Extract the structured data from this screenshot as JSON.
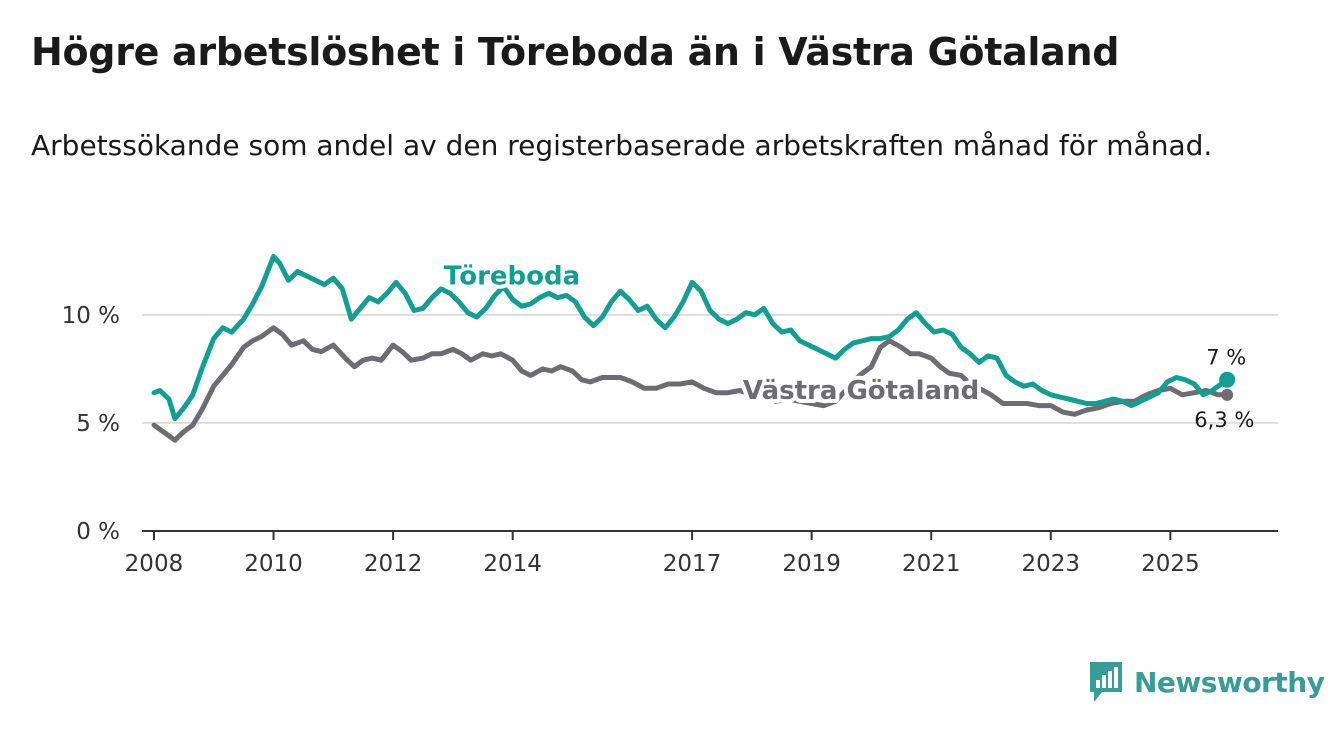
{
  "title": "Högre arbetslöshet i Töreboda än i Västra Götaland",
  "subtitle": "Arbetssökande som andel av den registerbaserade arbetskraften månad för månad.",
  "brand": {
    "name": "Newsworthy",
    "color": "#3a9c96"
  },
  "chart_data": {
    "type": "line",
    "title": "Högre arbetslöshet i Töreboda än i Västra Götaland",
    "xlabel": "",
    "ylabel": "",
    "ylim": [
      0,
      13
    ],
    "xlim": [
      2007.8,
      2026.8
    ],
    "grid": true,
    "y_ticks": [
      {
        "value": 0,
        "label": "0 %"
      },
      {
        "value": 5,
        "label": "5 %"
      },
      {
        "value": 10,
        "label": "10 %"
      }
    ],
    "x_ticks": [
      {
        "value": 2008,
        "label": "2008"
      },
      {
        "value": 2010,
        "label": "2010"
      },
      {
        "value": 2012,
        "label": "2012"
      },
      {
        "value": 2014,
        "label": "2014"
      },
      {
        "value": 2017,
        "label": "2017"
      },
      {
        "value": 2019,
        "label": "2019"
      },
      {
        "value": 2021,
        "label": "2021"
      },
      {
        "value": 2023,
        "label": "2023"
      },
      {
        "value": 2025,
        "label": "2025"
      }
    ],
    "series": [
      {
        "name": "Västra Götaland",
        "color": "#6d6c72",
        "end_label": "6,3 %",
        "x": [
          2008.0,
          2008.2,
          2008.35,
          2008.5,
          2008.65,
          2008.8,
          2009.0,
          2009.15,
          2009.3,
          2009.5,
          2009.65,
          2009.8,
          2010.0,
          2010.15,
          2010.3,
          2010.5,
          2010.65,
          2010.8,
          2011.0,
          2011.2,
          2011.35,
          2011.5,
          2011.65,
          2011.8,
          2012.0,
          2012.15,
          2012.3,
          2012.5,
          2012.65,
          2012.8,
          2013.0,
          2013.15,
          2013.3,
          2013.5,
          2013.65,
          2013.8,
          2014.0,
          2014.15,
          2014.3,
          2014.5,
          2014.65,
          2014.8,
          2015.0,
          2015.15,
          2015.3,
          2015.5,
          2015.65,
          2015.8,
          2016.0,
          2016.2,
          2016.4,
          2016.6,
          2016.8,
          2017.0,
          2017.2,
          2017.4,
          2017.6,
          2017.8,
          2018.0,
          2018.2,
          2018.4,
          2018.6,
          2018.8,
          2019.0,
          2019.2,
          2019.4,
          2019.6,
          2019.8,
          2020.0,
          2020.15,
          2020.3,
          2020.5,
          2020.65,
          2020.8,
          2021.0,
          2021.15,
          2021.3,
          2021.5,
          2021.65,
          2021.8,
          2022.0,
          2022.2,
          2022.4,
          2022.6,
          2022.8,
          2023.0,
          2023.2,
          2023.4,
          2023.6,
          2023.8,
          2024.0,
          2024.2,
          2024.4,
          2024.6,
          2024.8,
          2025.0,
          2025.2,
          2025.4,
          2025.6,
          2025.8,
          2025.95
        ],
        "values": [
          4.9,
          4.5,
          4.2,
          4.6,
          4.9,
          5.6,
          6.7,
          7.2,
          7.7,
          8.5,
          8.8,
          9.0,
          9.4,
          9.1,
          8.6,
          8.8,
          8.4,
          8.3,
          8.6,
          8.0,
          7.6,
          7.9,
          8.0,
          7.9,
          8.6,
          8.3,
          7.9,
          8.0,
          8.2,
          8.2,
          8.4,
          8.2,
          7.9,
          8.2,
          8.1,
          8.2,
          7.9,
          7.4,
          7.2,
          7.5,
          7.4,
          7.6,
          7.4,
          7.0,
          6.9,
          7.1,
          7.1,
          7.1,
          6.9,
          6.6,
          6.6,
          6.8,
          6.8,
          6.9,
          6.6,
          6.4,
          6.4,
          6.5,
          6.3,
          6.2,
          6.0,
          6.1,
          6.0,
          5.9,
          5.8,
          6.0,
          6.6,
          7.2,
          7.6,
          8.5,
          8.8,
          8.5,
          8.2,
          8.2,
          8.0,
          7.6,
          7.3,
          7.2,
          6.8,
          6.6,
          6.3,
          5.9,
          5.9,
          5.9,
          5.8,
          5.8,
          5.5,
          5.4,
          5.6,
          5.7,
          5.9,
          6.0,
          6.0,
          6.3,
          6.5,
          6.6,
          6.3,
          6.4,
          6.5,
          6.3,
          6.3
        ]
      },
      {
        "name": "Töreboda",
        "color": "#129f92",
        "end_label": "7 %",
        "x": [
          2008.0,
          2008.1,
          2008.25,
          2008.35,
          2008.5,
          2008.65,
          2008.8,
          2009.0,
          2009.15,
          2009.3,
          2009.5,
          2009.65,
          2009.8,
          2010.0,
          2010.1,
          2010.25,
          2010.4,
          2010.55,
          2010.7,
          2010.85,
          2011.0,
          2011.15,
          2011.3,
          2011.45,
          2011.6,
          2011.75,
          2011.9,
          2012.05,
          2012.2,
          2012.35,
          2012.5,
          2012.65,
          2012.8,
          2012.95,
          2013.1,
          2013.25,
          2013.4,
          2013.55,
          2013.7,
          2013.85,
          2014.0,
          2014.15,
          2014.3,
          2014.45,
          2014.6,
          2014.75,
          2014.9,
          2015.05,
          2015.2,
          2015.35,
          2015.5,
          2015.65,
          2015.8,
          2015.95,
          2016.1,
          2016.25,
          2016.4,
          2016.55,
          2016.7,
          2016.85,
          2017.0,
          2017.15,
          2017.3,
          2017.45,
          2017.6,
          2017.75,
          2017.9,
          2018.05,
          2018.2,
          2018.35,
          2018.5,
          2018.65,
          2018.8,
          2018.95,
          2019.1,
          2019.25,
          2019.4,
          2019.55,
          2019.7,
          2019.85,
          2020.0,
          2020.15,
          2020.3,
          2020.45,
          2020.6,
          2020.75,
          2020.9,
          2021.05,
          2021.2,
          2021.35,
          2021.5,
          2021.65,
          2021.8,
          2021.95,
          2022.1,
          2022.25,
          2022.4,
          2022.55,
          2022.7,
          2022.85,
          2023.0,
          2023.15,
          2023.3,
          2023.45,
          2023.6,
          2023.75,
          2023.9,
          2024.05,
          2024.2,
          2024.35,
          2024.5,
          2024.65,
          2024.8,
          2024.95,
          2025.1,
          2025.25,
          2025.4,
          2025.55,
          2025.7,
          2025.85,
          2025.95
        ],
        "values": [
          6.4,
          6.5,
          6.1,
          5.2,
          5.7,
          6.3,
          7.5,
          8.9,
          9.4,
          9.2,
          9.8,
          10.5,
          11.3,
          12.7,
          12.4,
          11.6,
          12.0,
          11.8,
          11.6,
          11.4,
          11.7,
          11.2,
          9.8,
          10.3,
          10.8,
          10.6,
          11.0,
          11.5,
          11.0,
          10.2,
          10.3,
          10.8,
          11.2,
          11.0,
          10.6,
          10.1,
          9.9,
          10.3,
          10.9,
          11.3,
          10.7,
          10.4,
          10.5,
          10.8,
          11.0,
          10.8,
          10.9,
          10.6,
          9.9,
          9.5,
          9.9,
          10.6,
          11.1,
          10.7,
          10.2,
          10.4,
          9.8,
          9.4,
          9.9,
          10.6,
          11.5,
          11.1,
          10.2,
          9.8,
          9.6,
          9.8,
          10.1,
          10.0,
          10.3,
          9.6,
          9.2,
          9.3,
          8.8,
          8.6,
          8.4,
          8.2,
          8.0,
          8.4,
          8.7,
          8.8,
          8.9,
          8.9,
          9.0,
          9.3,
          9.8,
          10.1,
          9.6,
          9.2,
          9.3,
          9.1,
          8.5,
          8.2,
          7.8,
          8.1,
          8.0,
          7.2,
          6.9,
          6.7,
          6.8,
          6.5,
          6.3,
          6.2,
          6.1,
          6.0,
          5.9,
          5.9,
          6.0,
          6.1,
          6.0,
          5.8,
          6.0,
          6.2,
          6.4,
          6.9,
          7.1,
          7.0,
          6.8,
          6.3,
          6.5,
          6.8,
          7.0
        ]
      }
    ]
  }
}
